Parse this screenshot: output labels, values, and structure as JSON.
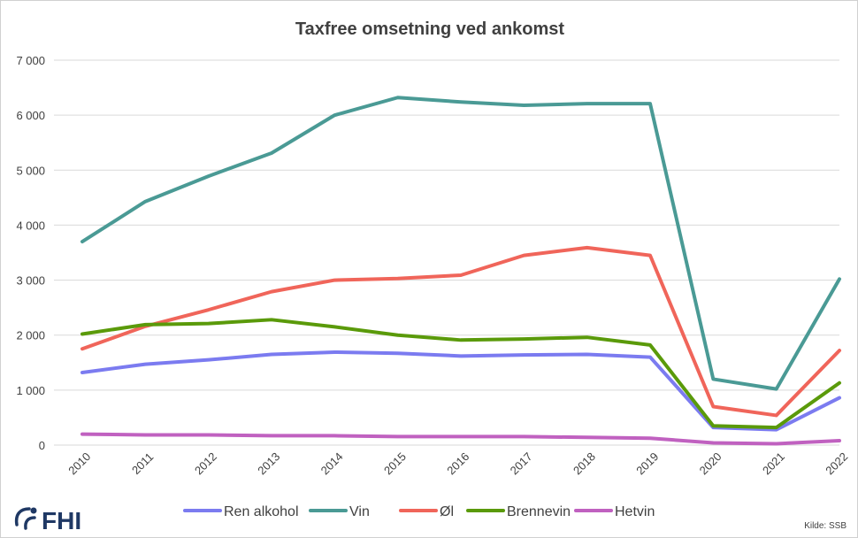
{
  "chart_data": {
    "type": "line",
    "title": "Taxfree omsetning ved ankomst",
    "categories": [
      "2010",
      "2011",
      "2012",
      "2013",
      "2014",
      "2015",
      "2016",
      "2017",
      "2018",
      "2019",
      "2020",
      "2021",
      "2022"
    ],
    "ylim": [
      0,
      7000
    ],
    "yticks": [
      0,
      1000,
      2000,
      3000,
      4000,
      5000,
      6000,
      7000
    ],
    "ytick_labels": [
      "0",
      "1 000",
      "2 000",
      "3 000",
      "4 000",
      "5 000",
      "6 000",
      "7 000"
    ],
    "grid": true,
    "legend_position": "bottom",
    "series": [
      {
        "name": "Ren alkohol",
        "color": "#7b7bf0",
        "values": [
          1320,
          1470,
          1550,
          1650,
          1690,
          1670,
          1620,
          1640,
          1650,
          1600,
          320,
          280,
          860
        ]
      },
      {
        "name": "Vin",
        "color": "#4a9a95",
        "values": [
          3700,
          4430,
          4890,
          5310,
          6000,
          6320,
          6240,
          6180,
          6210,
          6210,
          1200,
          1020,
          3020
        ]
      },
      {
        "name": "Øl",
        "color": "#f0655a",
        "values": [
          1750,
          2160,
          2460,
          2790,
          3000,
          3030,
          3090,
          3450,
          3590,
          3450,
          700,
          540,
          1720
        ]
      },
      {
        "name": "Brennevin",
        "color": "#5a9a0a",
        "values": [
          2020,
          2190,
          2210,
          2280,
          2150,
          2000,
          1910,
          1930,
          1960,
          1820,
          350,
          320,
          1130
        ]
      },
      {
        "name": "Hetvin",
        "color": "#c061c0",
        "values": [
          200,
          185,
          185,
          170,
          170,
          155,
          155,
          155,
          140,
          125,
          40,
          25,
          80
        ]
      }
    ]
  },
  "logo": {
    "text": "FHI"
  },
  "source": "Kilde: SSB"
}
